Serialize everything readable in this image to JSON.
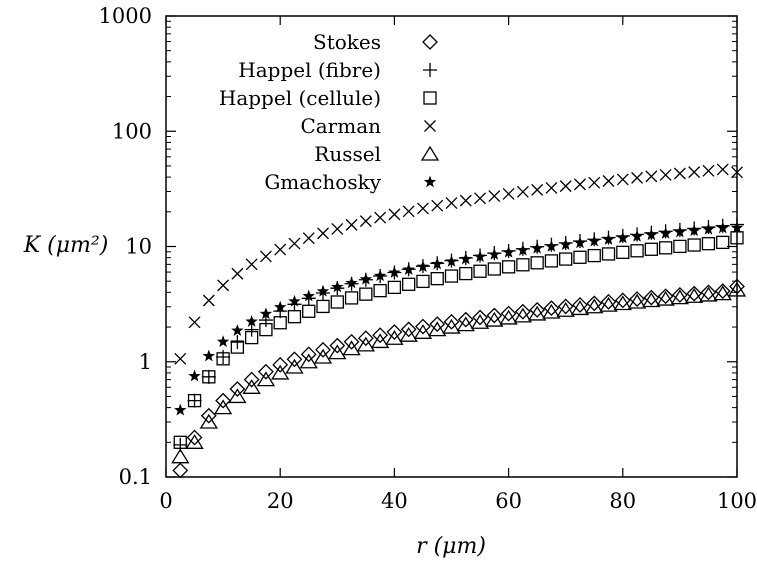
{
  "chart_data": {
    "type": "scatter",
    "title": "",
    "xlabel": "r (μm)",
    "ylabel": "K (μm²)",
    "xlim": [
      0,
      100
    ],
    "ylim": [
      0.1,
      1000
    ],
    "yscale": "log",
    "grid": false,
    "legend_position": "top-left",
    "x_ticks": [
      "0",
      "20",
      "40",
      "60",
      "80",
      "100"
    ],
    "y_ticks": [
      "0.1",
      "1",
      "10",
      "100",
      "1000"
    ],
    "x": [
      2.5,
      5,
      7.5,
      10,
      12.5,
      15,
      17.5,
      20,
      22.5,
      25,
      27.5,
      30,
      32.5,
      35,
      37.5,
      40,
      42.5,
      45,
      47.5,
      50,
      52.5,
      55,
      57.5,
      60,
      62.5,
      65,
      67.5,
      70,
      72.5,
      75,
      77.5,
      80,
      82.5,
      85,
      87.5,
      90,
      92.5,
      95,
      97.5,
      100
    ],
    "series": [
      {
        "name": "Stokes",
        "marker": "diamond",
        "values": [
          0.114,
          0.22,
          0.34,
          0.46,
          0.58,
          0.7,
          0.82,
          0.94,
          1.05,
          1.16,
          1.27,
          1.38,
          1.49,
          1.6,
          1.7,
          1.81,
          1.91,
          2.02,
          2.12,
          2.22,
          2.32,
          2.42,
          2.52,
          2.62,
          2.72,
          2.82,
          2.92,
          3.02,
          3.11,
          3.21,
          3.31,
          3.41,
          3.5,
          3.6,
          3.7,
          3.8,
          3.9,
          4.0,
          4.1,
          4.5
        ]
      },
      {
        "name": "Happel (fibre)",
        "marker": "plus",
        "values": [
          0.19,
          0.46,
          0.74,
          1.1,
          1.48,
          1.9,
          2.3,
          2.75,
          3.15,
          3.55,
          3.95,
          4.35,
          4.75,
          5.15,
          5.55,
          5.95,
          6.35,
          6.75,
          7.15,
          7.55,
          7.95,
          8.35,
          8.75,
          9.15,
          9.55,
          9.95,
          10.35,
          10.75,
          11.15,
          11.55,
          11.95,
          12.35,
          12.75,
          13.15,
          13.55,
          13.95,
          14.35,
          14.75,
          15.15,
          15.5
        ]
      },
      {
        "name": "Happel (cellule)",
        "marker": "square",
        "values": [
          0.2,
          0.46,
          0.74,
          1.06,
          1.34,
          1.62,
          1.9,
          2.18,
          2.46,
          2.74,
          3.02,
          3.3,
          3.58,
          3.86,
          4.14,
          4.42,
          4.7,
          4.98,
          5.26,
          5.54,
          5.82,
          6.1,
          6.38,
          6.66,
          6.94,
          7.22,
          7.5,
          7.78,
          8.06,
          8.34,
          8.62,
          8.9,
          9.18,
          9.46,
          9.74,
          10.02,
          10.3,
          10.58,
          10.86,
          11.9
        ]
      },
      {
        "name": "Carman",
        "marker": "cross",
        "values": [
          1.06,
          2.2,
          3.4,
          4.6,
          5.8,
          7.0,
          8.2,
          9.4,
          10.6,
          11.8,
          13.0,
          14.2,
          15.4,
          16.6,
          17.8,
          19.0,
          20.2,
          21.4,
          22.6,
          23.8,
          25.0,
          26.2,
          27.4,
          28.6,
          29.8,
          31.0,
          32.2,
          33.4,
          34.6,
          35.8,
          37.0,
          38.2,
          39.4,
          40.6,
          41.8,
          43.0,
          44.2,
          45.4,
          46.6,
          44.0
        ]
      },
      {
        "name": "Russel",
        "marker": "triangle",
        "values": [
          0.15,
          0.2,
          0.3,
          0.4,
          0.5,
          0.6,
          0.7,
          0.8,
          0.9,
          1.0,
          1.1,
          1.2,
          1.3,
          1.4,
          1.5,
          1.6,
          1.7,
          1.8,
          1.9,
          2.0,
          2.1,
          2.2,
          2.3,
          2.4,
          2.5,
          2.6,
          2.7,
          2.8,
          2.9,
          3.0,
          3.1,
          3.2,
          3.3,
          3.4,
          3.5,
          3.6,
          3.7,
          3.8,
          3.9,
          4.2
        ]
      },
      {
        "name": "Gmachosky",
        "marker": "star",
        "values": [
          0.38,
          0.75,
          1.12,
          1.49,
          1.86,
          2.23,
          2.6,
          2.97,
          3.34,
          3.71,
          4.08,
          4.45,
          4.82,
          5.19,
          5.56,
          5.93,
          6.3,
          6.67,
          7.04,
          7.41,
          7.78,
          8.15,
          8.52,
          8.89,
          9.26,
          9.63,
          10.0,
          10.37,
          10.74,
          11.11,
          11.48,
          11.85,
          12.22,
          12.59,
          12.96,
          13.33,
          13.7,
          14.07,
          14.44,
          14.5
        ]
      }
    ]
  }
}
